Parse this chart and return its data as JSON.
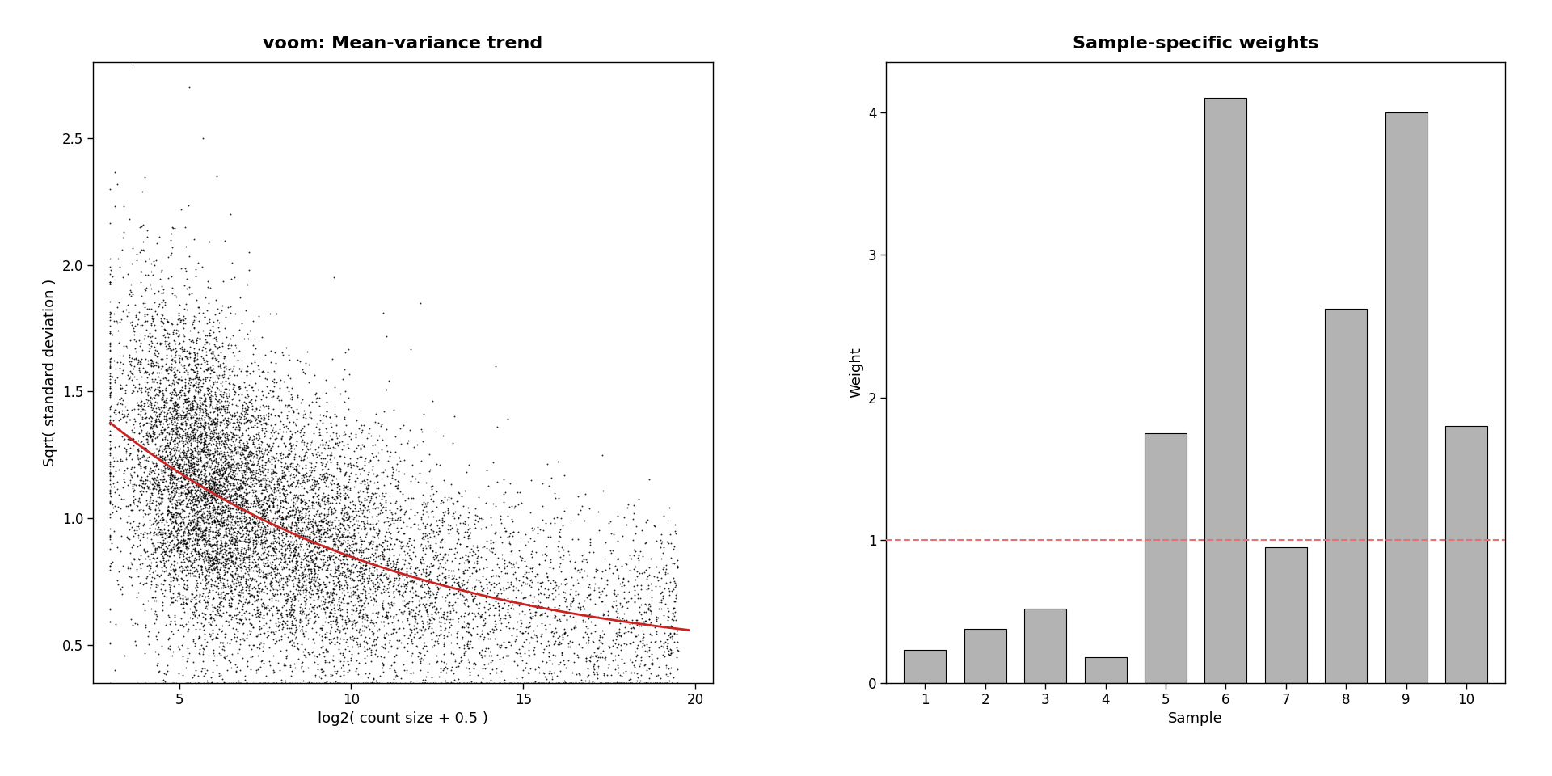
{
  "left_title": "voom: Mean-variance trend",
  "right_title": "Sample-specific weights",
  "left_xlabel": "log2( count size + 0.5 )",
  "left_ylabel": "Sqrt( standard deviation )",
  "right_xlabel": "Sample",
  "right_ylabel": "Weight",
  "scatter_xlim": [
    2.5,
    20.5
  ],
  "scatter_ylim": [
    0.35,
    2.8
  ],
  "scatter_xticks": [
    5,
    10,
    15,
    20
  ],
  "scatter_yticks": [
    0.5,
    1.0,
    1.5,
    2.0,
    2.5
  ],
  "bar_values": [
    0.23,
    0.38,
    0.52,
    0.18,
    1.75,
    4.1,
    0.95,
    2.62,
    4.0,
    1.8
  ],
  "bar_labels": [
    "1",
    "2",
    "3",
    "4",
    "5",
    "6",
    "7",
    "8",
    "9",
    "10"
  ],
  "bar_color": "#b3b3b3",
  "bar_edgecolor": "#000000",
  "bar_ylim": [
    0,
    4.35
  ],
  "bar_yticks": [
    0,
    1,
    2,
    3,
    4
  ],
  "dashed_line_y": 1.0,
  "dashed_line_color": "#e87070",
  "trend_color": "#cc2222",
  "scatter_color": "#000000",
  "background_color": "#ffffff",
  "seed": 42,
  "n_points": 12000,
  "title_fontsize": 16,
  "axis_label_fontsize": 13,
  "tick_fontsize": 12
}
